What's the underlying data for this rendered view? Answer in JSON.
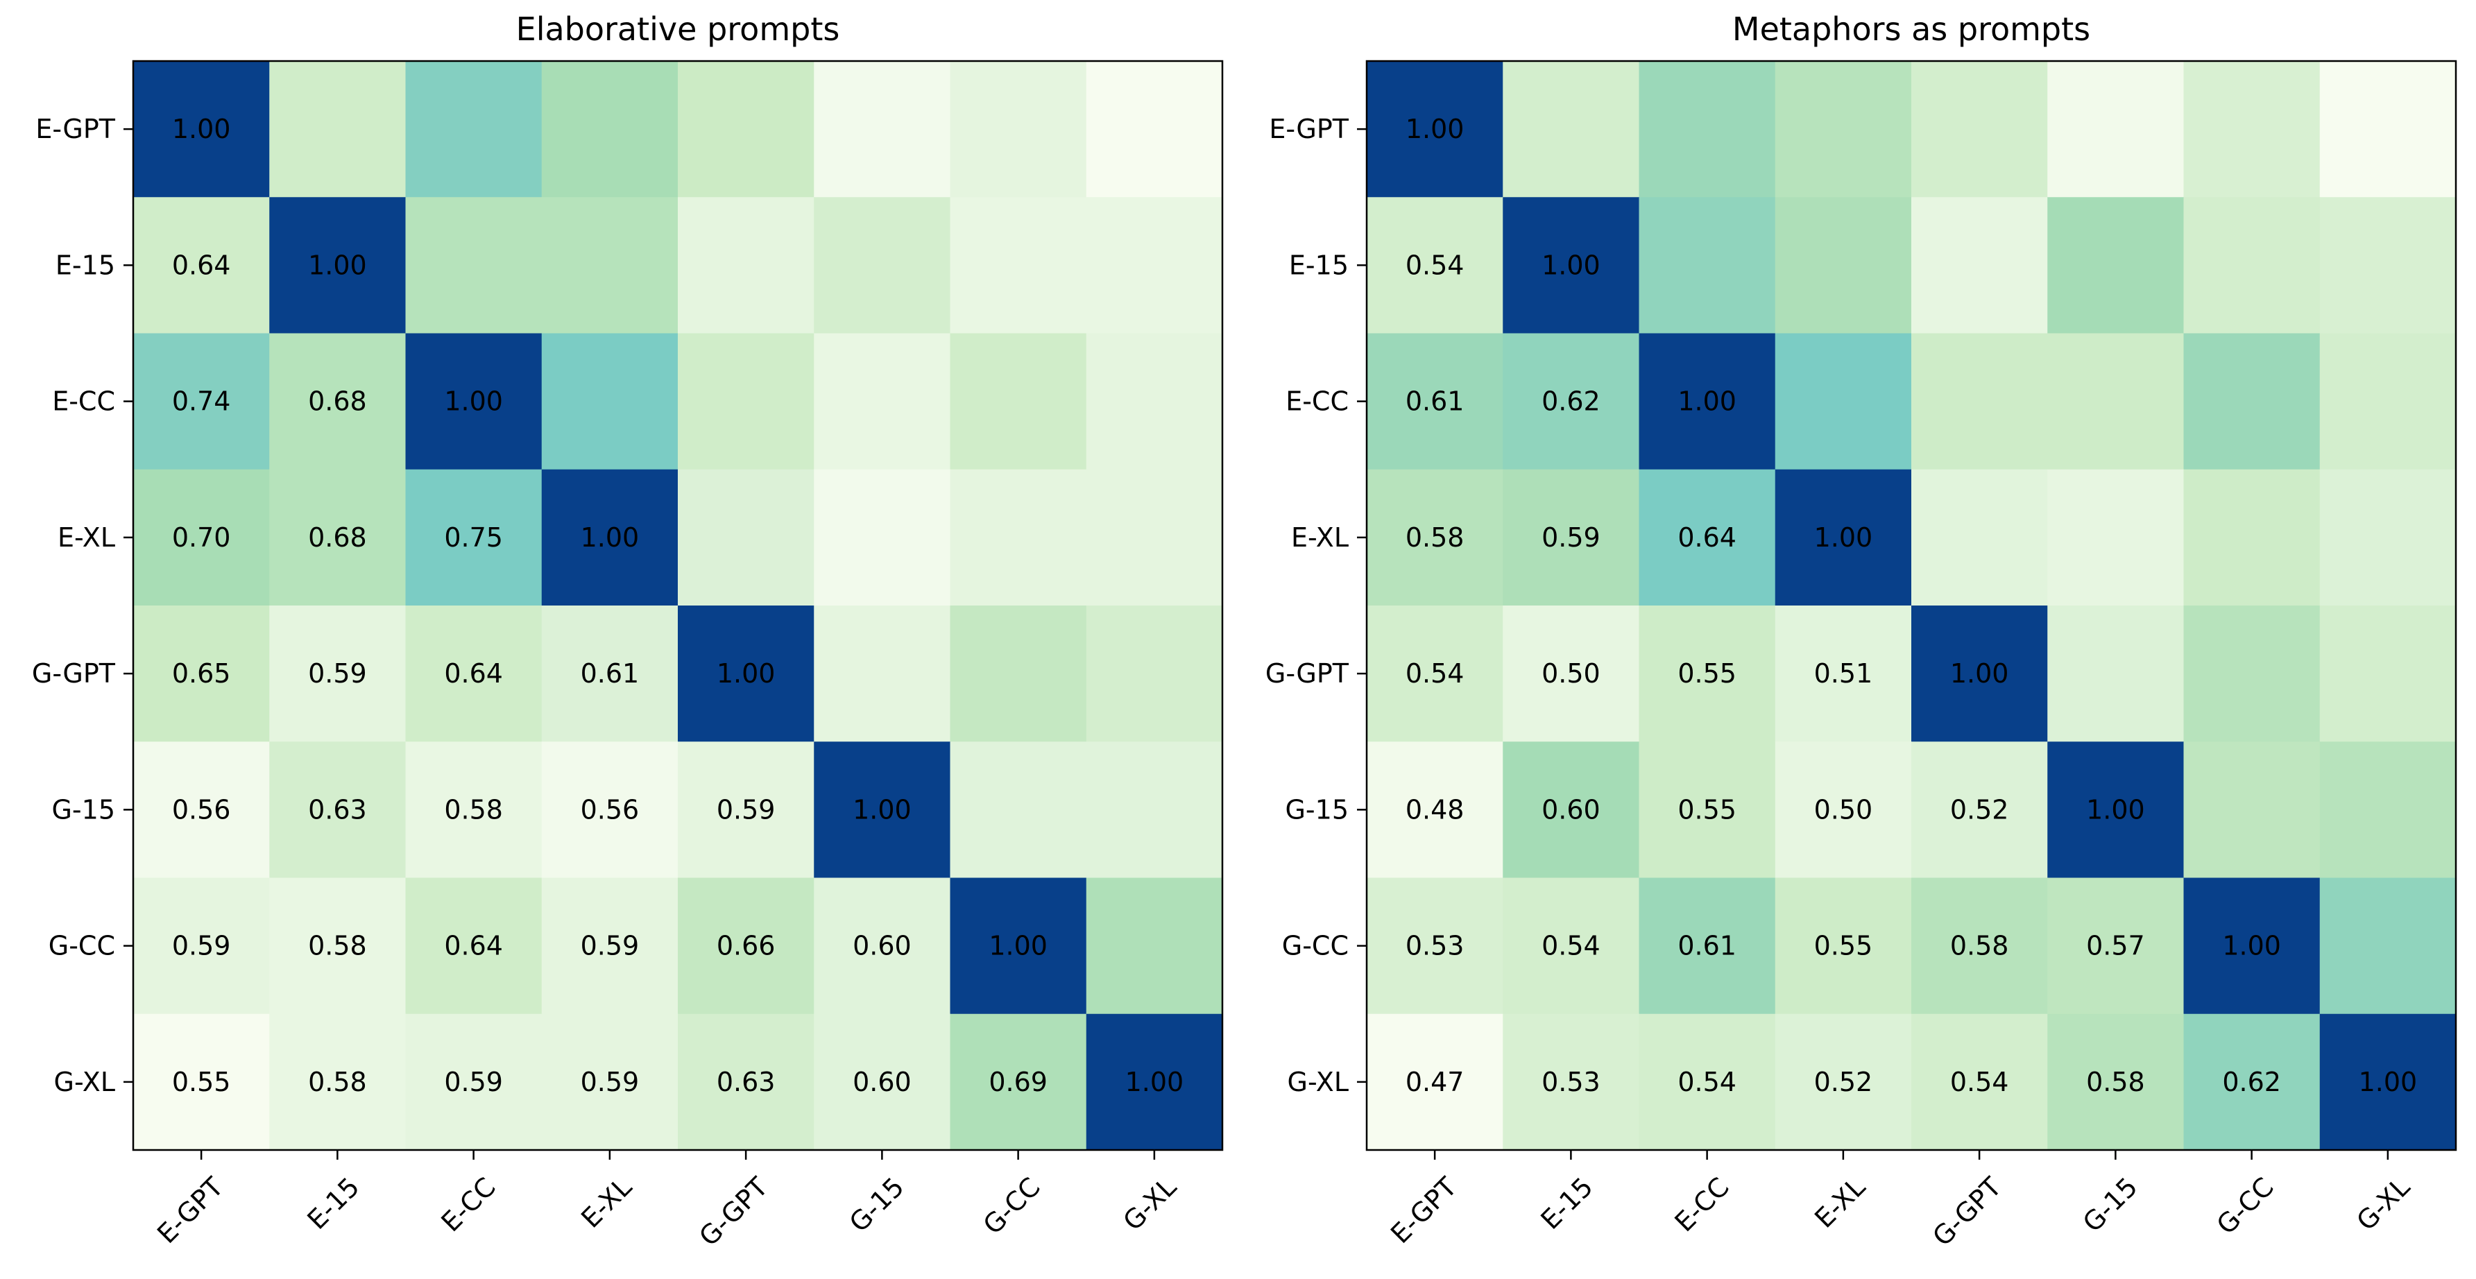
{
  "chart_data": [
    {
      "type": "heatmap",
      "title": "Elaborative prompts",
      "xlabel": "",
      "ylabel": "",
      "x_categories": [
        "E-GPT",
        "E-15",
        "E-CC",
        "E-XL",
        "G-GPT",
        "G-15",
        "G-CC",
        "G-XL"
      ],
      "y_categories": [
        "E-GPT",
        "E-15",
        "E-CC",
        "E-XL",
        "G-GPT",
        "G-15",
        "G-CC",
        "G-XL"
      ],
      "colormap": "GnBu",
      "values": [
        [
          1.0,
          0.64,
          0.74,
          0.7,
          0.65,
          0.56,
          0.59,
          0.55
        ],
        [
          0.64,
          1.0,
          0.68,
          0.68,
          0.59,
          0.63,
          0.58,
          0.58
        ],
        [
          0.74,
          0.68,
          1.0,
          0.75,
          0.64,
          0.58,
          0.64,
          0.59
        ],
        [
          0.7,
          0.68,
          0.75,
          1.0,
          0.61,
          0.56,
          0.59,
          0.59
        ],
        [
          0.65,
          0.59,
          0.64,
          0.61,
          1.0,
          0.59,
          0.66,
          0.63
        ],
        [
          0.56,
          0.63,
          0.58,
          0.56,
          0.59,
          1.0,
          0.6,
          0.6
        ],
        [
          0.59,
          0.58,
          0.64,
          0.59,
          0.66,
          0.6,
          1.0,
          0.69
        ],
        [
          0.55,
          0.58,
          0.59,
          0.59,
          0.63,
          0.6,
          0.69,
          1.0
        ]
      ],
      "annotated": "lower-triangle-and-diagonal"
    },
    {
      "type": "heatmap",
      "title": "Metaphors as prompts",
      "xlabel": "",
      "ylabel": "",
      "x_categories": [
        "E-GPT",
        "E-15",
        "E-CC",
        "E-XL",
        "G-GPT",
        "G-15",
        "G-CC",
        "G-XL"
      ],
      "y_categories": [
        "E-GPT",
        "E-15",
        "E-CC",
        "E-XL",
        "G-GPT",
        "G-15",
        "G-CC",
        "G-XL"
      ],
      "colormap": "GnBu",
      "values": [
        [
          1.0,
          0.54,
          0.61,
          0.58,
          0.54,
          0.48,
          0.53,
          0.47
        ],
        [
          0.54,
          1.0,
          0.62,
          0.59,
          0.5,
          0.6,
          0.54,
          0.53
        ],
        [
          0.61,
          0.62,
          1.0,
          0.64,
          0.55,
          0.55,
          0.61,
          0.54
        ],
        [
          0.58,
          0.59,
          0.64,
          1.0,
          0.51,
          0.5,
          0.55,
          0.52
        ],
        [
          0.54,
          0.5,
          0.55,
          0.51,
          1.0,
          0.52,
          0.58,
          0.54
        ],
        [
          0.48,
          0.6,
          0.55,
          0.5,
          0.52,
          1.0,
          0.57,
          0.58
        ],
        [
          0.53,
          0.54,
          0.61,
          0.55,
          0.58,
          0.57,
          1.0,
          0.62
        ],
        [
          0.47,
          0.53,
          0.54,
          0.52,
          0.54,
          0.58,
          0.62,
          1.0
        ]
      ],
      "annotated": "lower-triangle-and-diagonal"
    }
  ],
  "colors": {
    "diagonal": "#08408a",
    "text": "#000000",
    "axis": "#000000"
  }
}
